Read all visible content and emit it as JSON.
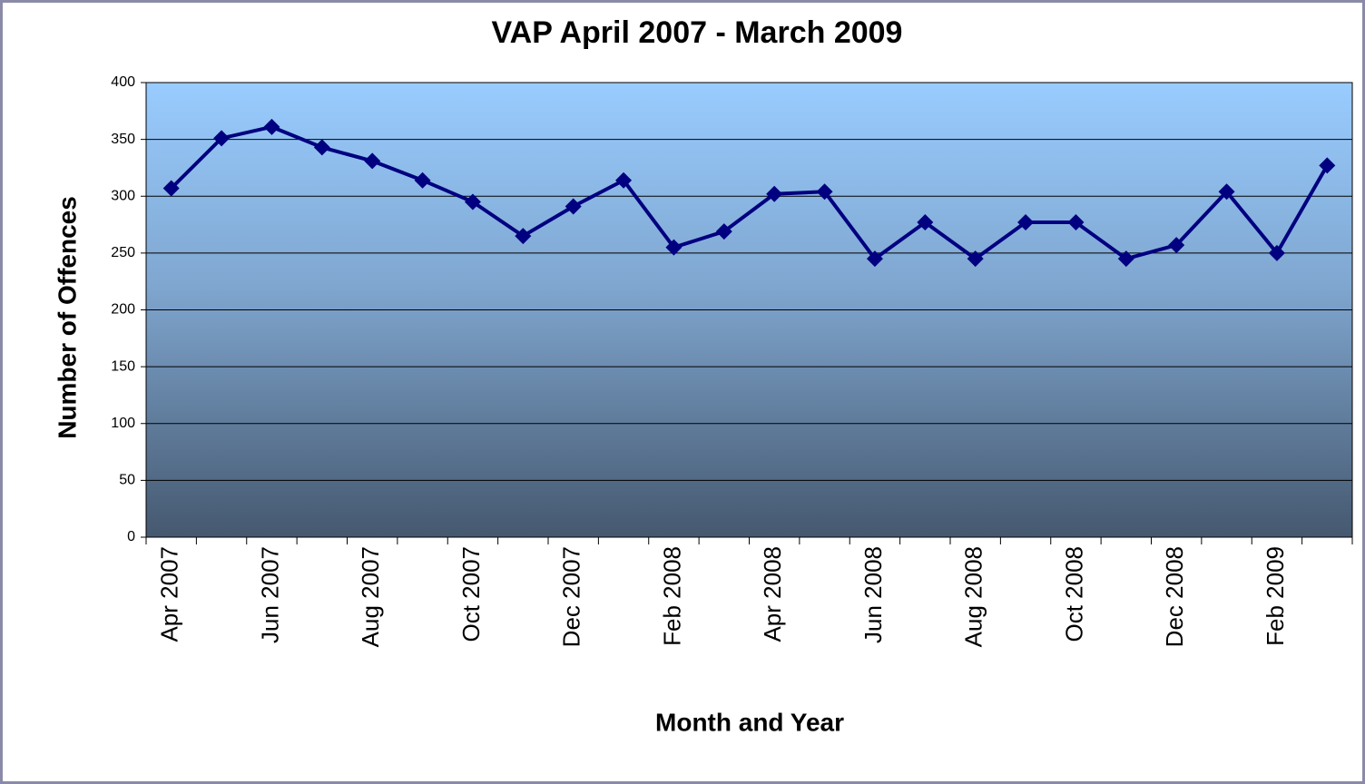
{
  "chart_data": {
    "type": "line",
    "title": "VAP April 2007 - March 2009",
    "x_label": "Month and Year",
    "y_label": "Number of Offences",
    "categories": [
      "Apr 2007",
      null,
      "Jun 2007",
      null,
      "Aug 2007",
      null,
      "Oct 2007",
      null,
      "Dec 2007",
      null,
      "Feb 2008",
      null,
      "Apr 2008",
      null,
      "Jun 2008",
      null,
      "Aug 2008",
      null,
      "Oct 2008",
      null,
      "Dec 2008",
      null,
      "Feb 2009",
      null
    ],
    "series": [
      {
        "name": "VAP",
        "color": "#000080",
        "values": [
          307,
          351,
          361,
          343,
          331,
          314,
          295,
          265,
          291,
          314,
          255,
          269,
          302,
          304,
          245,
          277,
          245,
          277,
          277,
          245,
          257,
          304,
          250,
          327
        ]
      }
    ],
    "ylim": [
      0,
      400
    ],
    "yticks": [
      0,
      50,
      100,
      150,
      200,
      250,
      300,
      350,
      400
    ],
    "grid": true
  }
}
